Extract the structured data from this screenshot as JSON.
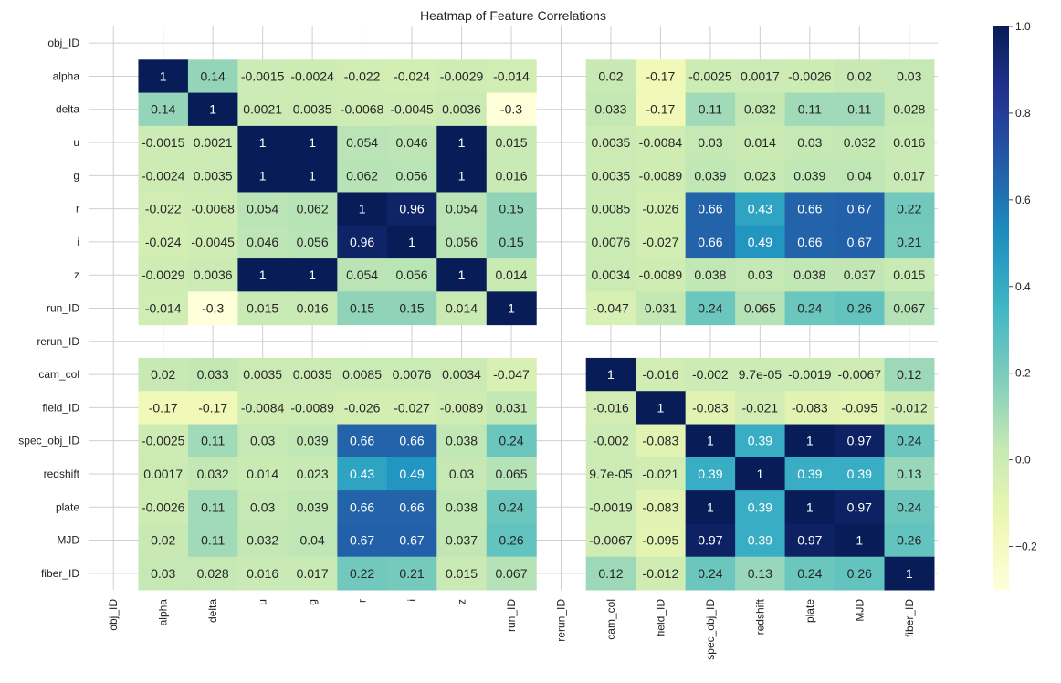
{
  "chart_data": {
    "type": "heatmap",
    "title": "Heatmap of Feature Correlations",
    "xlabel": "",
    "ylabel": "",
    "variables": [
      "obj_ID",
      "alpha",
      "delta",
      "u",
      "g",
      "r",
      "i",
      "z",
      "run_ID",
      "rerun_ID",
      "cam_col",
      "field_ID",
      "spec_obj_ID",
      "redshift",
      "plate",
      "MJD",
      "fiber_ID"
    ],
    "matrix": [
      [
        null,
        null,
        null,
        null,
        null,
        null,
        null,
        null,
        null,
        null,
        null,
        null,
        null,
        null,
        null,
        null,
        null
      ],
      [
        null,
        1,
        0.14,
        -0.0015,
        -0.0024,
        -0.022,
        -0.024,
        -0.0029,
        -0.014,
        null,
        0.02,
        -0.17,
        -0.0025,
        0.0017,
        -0.0026,
        0.02,
        0.03
      ],
      [
        null,
        0.14,
        1,
        0.0021,
        0.0035,
        -0.0068,
        -0.0045,
        0.0036,
        -0.3,
        null,
        0.033,
        -0.17,
        0.11,
        0.032,
        0.11,
        0.11,
        0.028
      ],
      [
        null,
        -0.0015,
        0.0021,
        1,
        1,
        0.054,
        0.046,
        1,
        0.015,
        null,
        0.0035,
        -0.0084,
        0.03,
        0.014,
        0.03,
        0.032,
        0.016
      ],
      [
        null,
        -0.0024,
        0.0035,
        1,
        1,
        0.062,
        0.056,
        1,
        0.016,
        null,
        0.0035,
        -0.0089,
        0.039,
        0.023,
        0.039,
        0.04,
        0.017
      ],
      [
        null,
        -0.022,
        -0.0068,
        0.054,
        0.062,
        1,
        0.96,
        0.054,
        0.15,
        null,
        0.0085,
        -0.026,
        0.66,
        0.43,
        0.66,
        0.67,
        0.22
      ],
      [
        null,
        -0.024,
        -0.0045,
        0.046,
        0.056,
        0.96,
        1,
        0.056,
        0.15,
        null,
        0.0076,
        -0.027,
        0.66,
        0.49,
        0.66,
        0.67,
        0.21
      ],
      [
        null,
        -0.0029,
        0.0036,
        1,
        1,
        0.054,
        0.056,
        1,
        0.014,
        null,
        0.0034,
        -0.0089,
        0.038,
        0.03,
        0.038,
        0.037,
        0.015
      ],
      [
        null,
        -0.014,
        -0.3,
        0.015,
        0.016,
        0.15,
        0.15,
        0.014,
        1,
        null,
        -0.047,
        0.031,
        0.24,
        0.065,
        0.24,
        0.26,
        0.067
      ],
      [
        null,
        null,
        null,
        null,
        null,
        null,
        null,
        null,
        null,
        null,
        null,
        null,
        null,
        null,
        null,
        null,
        null
      ],
      [
        null,
        0.02,
        0.033,
        0.0035,
        0.0035,
        0.0085,
        0.0076,
        0.0034,
        -0.047,
        null,
        1,
        -0.016,
        -0.002,
        9.7e-05,
        -0.0019,
        -0.0067,
        0.12
      ],
      [
        null,
        -0.17,
        -0.17,
        -0.0084,
        -0.0089,
        -0.026,
        -0.027,
        -0.0089,
        0.031,
        null,
        -0.016,
        1,
        -0.083,
        -0.021,
        -0.083,
        -0.095,
        -0.012
      ],
      [
        null,
        -0.0025,
        0.11,
        0.03,
        0.039,
        0.66,
        0.66,
        0.038,
        0.24,
        null,
        -0.002,
        -0.083,
        1,
        0.39,
        1,
        0.97,
        0.24
      ],
      [
        null,
        0.0017,
        0.032,
        0.014,
        0.023,
        0.43,
        0.49,
        0.03,
        0.065,
        null,
        9.7e-05,
        -0.021,
        0.39,
        1,
        0.39,
        0.39,
        0.13
      ],
      [
        null,
        -0.0026,
        0.11,
        0.03,
        0.039,
        0.66,
        0.66,
        0.038,
        0.24,
        null,
        -0.0019,
        -0.083,
        1,
        0.39,
        1,
        0.97,
        0.24
      ],
      [
        null,
        0.02,
        0.11,
        0.032,
        0.04,
        0.67,
        0.67,
        0.037,
        0.26,
        null,
        -0.0067,
        -0.095,
        0.97,
        0.39,
        0.97,
        1,
        0.26
      ],
      [
        null,
        0.03,
        0.028,
        0.016,
        0.017,
        0.22,
        0.21,
        0.015,
        0.067,
        null,
        0.12,
        -0.012,
        0.24,
        0.13,
        0.24,
        0.26,
        1
      ]
    ],
    "annotated": true,
    "colormap": "YlGnBu",
    "colormap_stops": [
      "#ffffd9",
      "#edf8b1",
      "#c7e9b4",
      "#7fcdbb",
      "#41b6c4",
      "#1d91c0",
      "#225ea8",
      "#253494",
      "#081d58"
    ],
    "vmin": -0.3,
    "vmax": 1.0,
    "colorbar": {
      "position": "right",
      "ticks": [
        -0.2,
        0.0,
        0.2,
        0.4,
        0.6,
        0.8,
        1.0
      ],
      "tick_labels": [
        "−0.2",
        "0.0",
        "0.2",
        "0.4",
        "0.6",
        "0.8",
        "1.0"
      ]
    },
    "grid": true
  }
}
